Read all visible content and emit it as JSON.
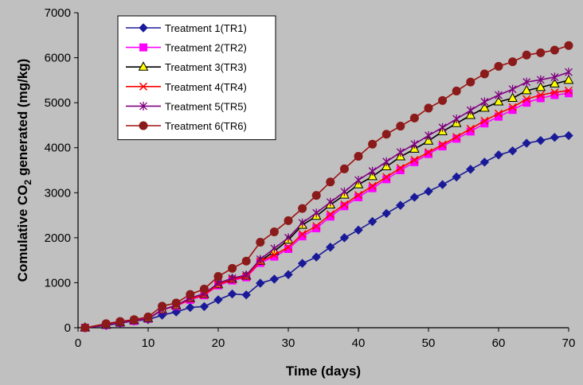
{
  "chart_data": {
    "type": "line",
    "title": "",
    "xlabel": "Time (days)",
    "ylabel_parts": [
      "Comulative CO",
      "2",
      " generated (mg/kg)"
    ],
    "xlim": [
      0,
      70
    ],
    "ylim": [
      0,
      7000
    ],
    "xticks": [
      0,
      10,
      20,
      30,
      40,
      50,
      60,
      70
    ],
    "yticks": [
      0,
      1000,
      2000,
      3000,
      4000,
      5000,
      6000,
      7000
    ],
    "legend_position": "top-left",
    "x": [
      1,
      4,
      6,
      8,
      10,
      12,
      14,
      16,
      18,
      20,
      22,
      24,
      26,
      28,
      30,
      32,
      34,
      36,
      38,
      40,
      42,
      44,
      46,
      48,
      50,
      52,
      54,
      56,
      58,
      60,
      62,
      64,
      66,
      68,
      70
    ],
    "series": [
      {
        "name": "Treatment 1(TR1)",
        "color": "#1a1a99",
        "marker": "diamond",
        "values": [
          0,
          50,
          100,
          150,
          180,
          280,
          350,
          450,
          470,
          620,
          750,
          730,
          990,
          1080,
          1180,
          1430,
          1570,
          1790,
          2000,
          2170,
          2360,
          2540,
          2720,
          2900,
          3030,
          3180,
          3350,
          3520,
          3680,
          3840,
          3930,
          4100,
          4160,
          4230,
          4270
        ]
      },
      {
        "name": "Treatment 2(TR2)",
        "color": "#ff00ff",
        "marker": "square",
        "values": [
          0,
          60,
          110,
          150,
          200,
          400,
          480,
          620,
          720,
          940,
          1050,
          1120,
          1440,
          1580,
          1750,
          2030,
          2210,
          2470,
          2700,
          2900,
          3100,
          3300,
          3500,
          3680,
          3860,
          4030,
          4200,
          4360,
          4540,
          4690,
          4840,
          5000,
          5100,
          5170,
          5210
        ]
      },
      {
        "name": "Treatment 3(TR3)",
        "color": "#000000",
        "marker": "triangle",
        "markerFill": "#ffff00",
        "values": [
          0,
          60,
          110,
          160,
          200,
          400,
          490,
          650,
          740,
          960,
          1080,
          1150,
          1480,
          1700,
          1950,
          2280,
          2480,
          2730,
          2950,
          3180,
          3360,
          3580,
          3800,
          3970,
          4150,
          4360,
          4540,
          4720,
          4880,
          5020,
          5100,
          5270,
          5340,
          5420,
          5500
        ]
      },
      {
        "name": "Treatment 4(TR4)",
        "color": "#ff0000",
        "marker": "x",
        "values": [
          0,
          60,
          110,
          160,
          200,
          400,
          490,
          640,
          730,
          960,
          1070,
          1140,
          1470,
          1620,
          1790,
          2080,
          2260,
          2520,
          2740,
          2950,
          3150,
          3350,
          3550,
          3730,
          3900,
          4070,
          4240,
          4420,
          4600,
          4760,
          4900,
          5080,
          5170,
          5230,
          5270
        ]
      },
      {
        "name": "Treatment 5(TR5)",
        "color": "#800080",
        "marker": "star",
        "values": [
          0,
          60,
          110,
          160,
          200,
          400,
          500,
          660,
          760,
          990,
          1100,
          1170,
          1520,
          1760,
          2000,
          2330,
          2550,
          2790,
          3020,
          3280,
          3480,
          3690,
          3900,
          4080,
          4270,
          4450,
          4640,
          4830,
          5020,
          5170,
          5300,
          5460,
          5510,
          5570,
          5680
        ]
      },
      {
        "name": "Treatment 6(TR6)",
        "color": "#a01010",
        "marker": "circle",
        "markerFill": "#8b1a1a",
        "values": [
          0,
          90,
          140,
          180,
          240,
          480,
          550,
          740,
          860,
          1140,
          1320,
          1480,
          1900,
          2130,
          2380,
          2650,
          2940,
          3240,
          3530,
          3810,
          4080,
          4300,
          4480,
          4660,
          4880,
          5050,
          5260,
          5460,
          5640,
          5810,
          5910,
          6060,
          6110,
          6170,
          6270
        ]
      }
    ]
  }
}
